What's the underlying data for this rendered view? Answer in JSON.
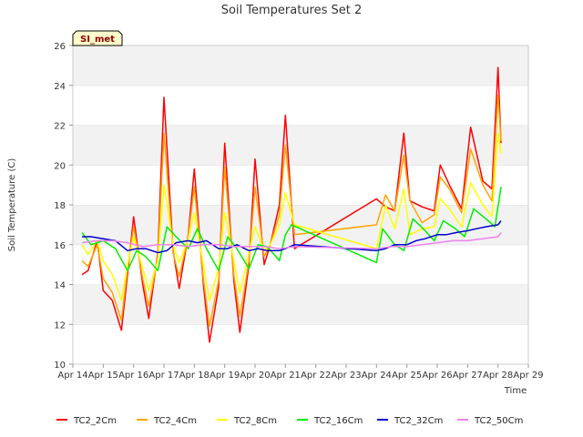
{
  "chart_data": {
    "type": "line",
    "title": "Soil Temperatures Set 2",
    "xlabel": "Time",
    "ylabel": "Soil Temperature (C)",
    "site_label": "SI_met",
    "ylim": [
      10,
      26
    ],
    "yticks": [
      10,
      12,
      14,
      16,
      18,
      20,
      22,
      24,
      26
    ],
    "xlim": [
      14,
      29
    ],
    "xticks": [
      {
        "day": 14,
        "label": "Apr 14"
      },
      {
        "day": 15,
        "label": "Apr 15"
      },
      {
        "day": 16,
        "label": "Apr 16"
      },
      {
        "day": 17,
        "label": "Apr 17"
      },
      {
        "day": 18,
        "label": "Apr 18"
      },
      {
        "day": 19,
        "label": "Apr 19"
      },
      {
        "day": 20,
        "label": "Apr 20"
      },
      {
        "day": 21,
        "label": "Apr 21"
      },
      {
        "day": 22,
        "label": "Apr 22"
      },
      {
        "day": 23,
        "label": "Apr 23"
      },
      {
        "day": 24,
        "label": "Apr 24"
      },
      {
        "day": 25,
        "label": "Apr 25"
      },
      {
        "day": 26,
        "label": "Apr 26"
      },
      {
        "day": 27,
        "label": "Apr 27"
      },
      {
        "day": 28,
        "label": "Apr 28"
      },
      {
        "day": 29,
        "label": "Apr 29"
      }
    ],
    "grid": "horizontal bands",
    "legend_position": "bottom",
    "series": [
      {
        "name": "TC2_2Cm",
        "color": "#ff0000",
        "x": [
          14.3,
          14.5,
          14.8,
          15.0,
          15.3,
          15.6,
          15.8,
          16.0,
          16.3,
          16.5,
          16.8,
          17.0,
          17.3,
          17.5,
          17.8,
          18.0,
          18.3,
          18.5,
          18.8,
          19.0,
          19.3,
          19.5,
          19.8,
          20.0,
          20.3,
          20.5,
          20.8,
          21.0,
          21.3,
          24.0,
          24.3,
          24.6,
          24.9,
          25.1,
          25.5,
          25.9,
          26.1,
          26.4,
          26.8,
          27.1,
          27.5,
          27.8,
          28.0,
          28.1
        ],
        "y": [
          14.5,
          14.7,
          16.2,
          13.7,
          13.2,
          11.7,
          14.5,
          17.4,
          14.0,
          12.3,
          15.6,
          23.4,
          15.7,
          13.8,
          16.5,
          19.8,
          14.0,
          11.1,
          13.9,
          21.1,
          14.2,
          11.6,
          15.0,
          20.3,
          15.0,
          16.0,
          18.0,
          22.5,
          15.8,
          18.3,
          17.9,
          17.7,
          21.6,
          18.2,
          17.9,
          17.7,
          20.0,
          19.0,
          17.8,
          21.9,
          19.2,
          18.8,
          24.9,
          21.1
        ]
      },
      {
        "name": "TC2_4Cm",
        "color": "#ffa500",
        "x": [
          14.3,
          14.5,
          14.8,
          15.0,
          15.3,
          15.6,
          15.8,
          16.0,
          16.3,
          16.5,
          16.8,
          17.0,
          17.3,
          17.5,
          17.8,
          18.0,
          18.3,
          18.5,
          18.8,
          19.0,
          19.3,
          19.5,
          19.8,
          20.0,
          20.3,
          20.5,
          20.8,
          21.0,
          21.3,
          24.0,
          24.3,
          24.6,
          24.9,
          25.1,
          25.5,
          25.9,
          26.1,
          26.4,
          26.8,
          27.1,
          27.5,
          27.8,
          28.0,
          28.1
        ],
        "y": [
          15.2,
          14.9,
          16.0,
          14.3,
          13.6,
          12.2,
          14.8,
          16.9,
          14.3,
          12.9,
          15.4,
          21.6,
          15.6,
          14.4,
          16.4,
          18.9,
          14.3,
          11.9,
          14.2,
          19.9,
          14.5,
          12.4,
          15.2,
          18.9,
          15.4,
          16.0,
          17.5,
          21.0,
          16.5,
          17.0,
          18.5,
          17.7,
          20.5,
          18.2,
          17.1,
          17.5,
          19.4,
          18.8,
          17.6,
          20.8,
          19.0,
          18.2,
          23.5,
          21.2
        ]
      },
      {
        "name": "TC2_8Cm",
        "color": "#ffff00",
        "x": [
          14.3,
          14.5,
          14.8,
          15.0,
          15.3,
          15.6,
          15.8,
          16.0,
          16.3,
          16.5,
          16.8,
          17.0,
          17.3,
          17.5,
          17.8,
          18.0,
          18.3,
          18.5,
          18.8,
          19.0,
          19.3,
          19.5,
          19.8,
          20.0,
          20.3,
          20.5,
          20.8,
          21.0,
          21.3,
          24.0,
          24.3,
          24.6,
          24.9,
          25.1,
          25.5,
          25.9,
          26.1,
          26.4,
          26.8,
          27.1,
          27.5,
          27.8,
          28.0,
          28.1
        ],
        "y": [
          16.0,
          15.5,
          16.2,
          15.2,
          14.5,
          13.2,
          15.0,
          16.4,
          14.8,
          13.7,
          15.2,
          19.0,
          16.0,
          15.1,
          16.3,
          17.6,
          15.0,
          13.2,
          14.8,
          17.6,
          15.2,
          13.6,
          15.6,
          16.9,
          15.7,
          16.0,
          17.0,
          18.6,
          17.0,
          15.8,
          18.0,
          16.8,
          18.8,
          16.5,
          16.8,
          16.9,
          18.3,
          17.8,
          16.9,
          19.1,
          18.0,
          17.4,
          21.6,
          20.6
        ]
      },
      {
        "name": "TC2_16Cm",
        "color": "#00ee00",
        "x": [
          14.3,
          14.6,
          15.0,
          15.4,
          15.8,
          16.1,
          16.4,
          16.8,
          17.1,
          17.4,
          17.8,
          18.1,
          18.4,
          18.8,
          19.1,
          19.4,
          19.8,
          20.1,
          20.4,
          20.8,
          21.0,
          21.2,
          24.0,
          24.2,
          24.6,
          24.9,
          25.2,
          25.6,
          25.9,
          26.2,
          26.6,
          26.9,
          27.2,
          27.6,
          27.9,
          28.1
        ],
        "y": [
          16.6,
          16.0,
          16.2,
          15.8,
          14.7,
          15.7,
          15.4,
          14.7,
          16.9,
          16.4,
          15.8,
          16.8,
          15.8,
          14.7,
          16.4,
          15.8,
          14.8,
          16.0,
          15.9,
          15.2,
          16.5,
          17.0,
          15.1,
          16.8,
          16.0,
          15.7,
          17.3,
          16.7,
          16.2,
          17.2,
          16.8,
          16.4,
          17.8,
          17.3,
          16.9,
          18.9
        ]
      },
      {
        "name": "TC2_32Cm",
        "color": "#0000cd",
        "x": [
          14.3,
          14.6,
          15.0,
          15.4,
          15.8,
          16.1,
          16.4,
          16.8,
          17.1,
          17.4,
          17.8,
          18.1,
          18.4,
          18.8,
          19.1,
          19.4,
          19.8,
          20.1,
          20.4,
          20.8,
          21.0,
          21.3,
          24.0,
          24.3,
          24.6,
          25.0,
          25.3,
          25.6,
          26.0,
          26.3,
          26.6,
          27.0,
          27.3,
          27.6,
          28.0,
          28.1
        ],
        "y": [
          16.4,
          16.4,
          16.3,
          16.2,
          15.7,
          15.8,
          15.8,
          15.6,
          15.7,
          16.1,
          16.2,
          16.1,
          16.2,
          15.8,
          15.8,
          16.0,
          15.7,
          15.8,
          15.7,
          15.7,
          15.8,
          16.0,
          15.7,
          15.8,
          16.0,
          16.0,
          16.2,
          16.3,
          16.5,
          16.5,
          16.6,
          16.7,
          16.8,
          16.9,
          17.0,
          17.2
        ]
      },
      {
        "name": "TC2_50Cm",
        "color": "#ee82ee",
        "x": [
          14.3,
          14.8,
          15.3,
          15.8,
          16.3,
          16.8,
          17.3,
          17.8,
          18.3,
          18.8,
          19.3,
          19.8,
          20.3,
          20.8,
          21.3,
          24.0,
          24.5,
          25.0,
          25.5,
          26.0,
          26.5,
          27.0,
          27.5,
          28.0,
          28.1
        ],
        "y": [
          16.1,
          16.2,
          16.2,
          16.1,
          15.9,
          16.0,
          16.0,
          15.9,
          16.0,
          16.0,
          15.9,
          15.9,
          15.9,
          15.8,
          15.9,
          15.8,
          15.9,
          15.9,
          16.0,
          16.1,
          16.2,
          16.2,
          16.3,
          16.4,
          16.6
        ]
      }
    ]
  }
}
